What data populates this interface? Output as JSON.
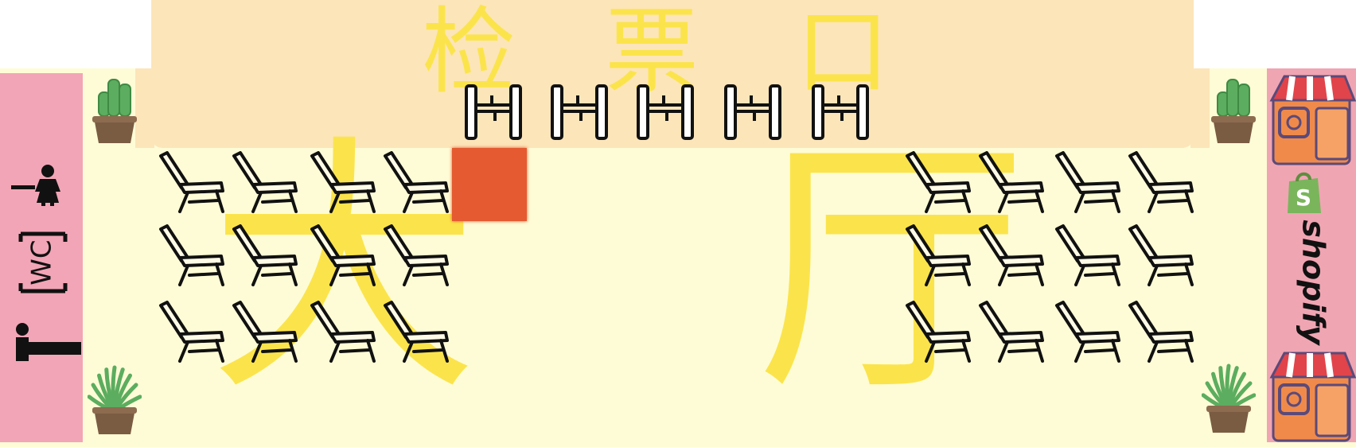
{
  "ticket_area": {
    "label": "检票口",
    "chars": [
      "检",
      "票",
      "口"
    ]
  },
  "hall": {
    "label": "大厅",
    "chars": [
      "大",
      "厅"
    ]
  },
  "restroom": {
    "label": "WC"
  },
  "shop": {
    "brand": "shopify",
    "badge_letter": "S"
  },
  "icons": {
    "gate": "ticket-gate-icon",
    "chair": "chair-icon",
    "plant": "potted-plant-icon",
    "shop": "shop-icon",
    "player": "player-marker",
    "restroom": [
      "male-restroom-icon",
      "female-restroom-icon"
    ]
  },
  "colors": {
    "floor": "#fefcd6",
    "ticket_area": "#fce5b9",
    "restroom": "#f2a5b6",
    "shop": "#f0a5b3",
    "lettering": "#fbe44b",
    "player": "#e55a31",
    "shop_awning": "#e1444a",
    "shop_wall": "#f08a4b",
    "plant_leaf": "#5cad5f",
    "plant_pot": "#7a5c43"
  },
  "layout_counts": {
    "ticket_gates": 5,
    "chair_rows_left": 3,
    "chair_cols_left": 4,
    "chair_rows_right": 3,
    "chair_cols_right": 4
  }
}
